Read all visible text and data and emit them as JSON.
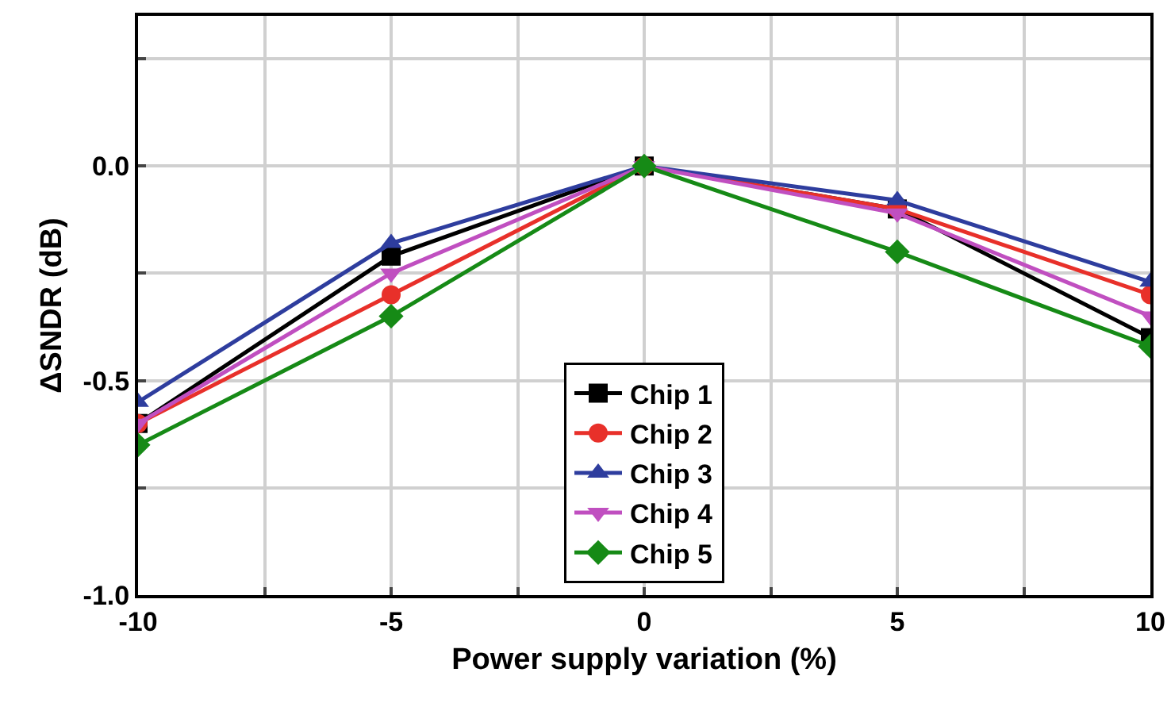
{
  "chart_data": {
    "type": "line",
    "xlabel": "Power supply variation (%)",
    "ylabel": "ΔSNDR (dB)",
    "x": [
      -10,
      -5,
      0,
      5,
      10
    ],
    "xlim": [
      -10,
      10
    ],
    "xticks": [
      -10,
      {
        "value": -7.5,
        "label": null
      },
      -5,
      {
        "value": -2.5,
        "label": null
      },
      0,
      {
        "value": 2.5,
        "label": null
      },
      5,
      {
        "value": 7.5,
        "label": null
      },
      10
    ],
    "ylim": [
      -1,
      0.35
    ],
    "yticks": [
      {
        "value": -1,
        "label": "-1.0"
      },
      {
        "value": -0.75,
        "label": null
      },
      {
        "value": -0.5,
        "label": "-0.5"
      },
      {
        "value": -0.25,
        "label": null
      },
      {
        "value": 0,
        "label": "0.0"
      },
      {
        "value": 0.25,
        "label": null
      }
    ],
    "grid": true,
    "legend": "bottom",
    "line_style": "solid",
    "series": [
      {
        "name": "Chip 1",
        "color": "#000000",
        "marker": "square",
        "values": [
          -0.6,
          -0.21,
          0,
          -0.1,
          -0.4
        ]
      },
      {
        "name": "Chip 2",
        "color": "#e8302a",
        "marker": "circle",
        "values": [
          -0.6,
          -0.3,
          0,
          -0.1,
          -0.3
        ]
      },
      {
        "name": "Chip 3",
        "color": "#2e3d9e",
        "marker": "triangle",
        "values": [
          -0.55,
          -0.18,
          0,
          -0.08,
          -0.27
        ]
      },
      {
        "name": "Chip 4",
        "color": "#c04fc0",
        "marker": "triangle-down",
        "values": [
          -0.6,
          -0.25,
          0,
          -0.11,
          -0.35
        ]
      },
      {
        "name": "Chip 5",
        "color": "#168a16",
        "marker": "diamond",
        "values": [
          -0.65,
          -0.35,
          0,
          -0.2,
          -0.42
        ]
      }
    ]
  }
}
